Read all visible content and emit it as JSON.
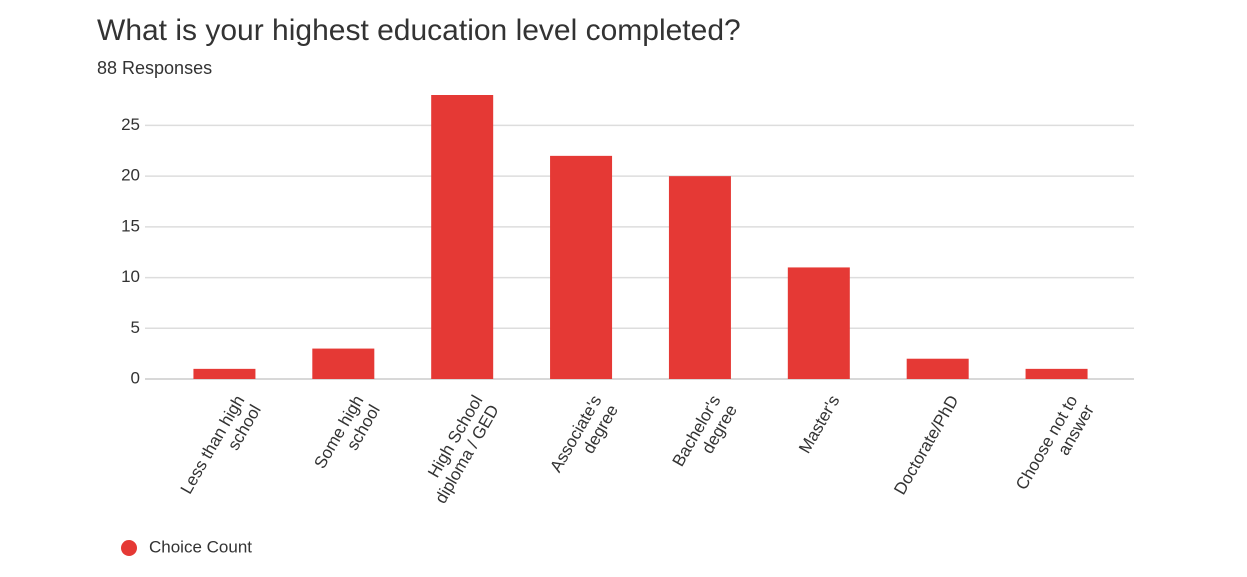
{
  "chart_data": {
    "type": "bar",
    "title": "What is your highest education level completed?",
    "subtitle": "88 Responses",
    "categories": [
      "Less than high school",
      "Some high school",
      "High School diploma / GED",
      "Associate's degree",
      "Bachelor's degree",
      "Master's",
      "Doctorate/PhD",
      "Choose not to answer"
    ],
    "series": [
      {
        "name": "Choice Count",
        "color": "#e53935",
        "values": [
          1,
          3,
          28,
          22,
          20,
          11,
          2,
          1
        ]
      }
    ],
    "ylim": [
      0,
      28
    ],
    "yticks": [
      0,
      5,
      10,
      15,
      20,
      25
    ],
    "grid": true,
    "legend": "bottom-left"
  }
}
